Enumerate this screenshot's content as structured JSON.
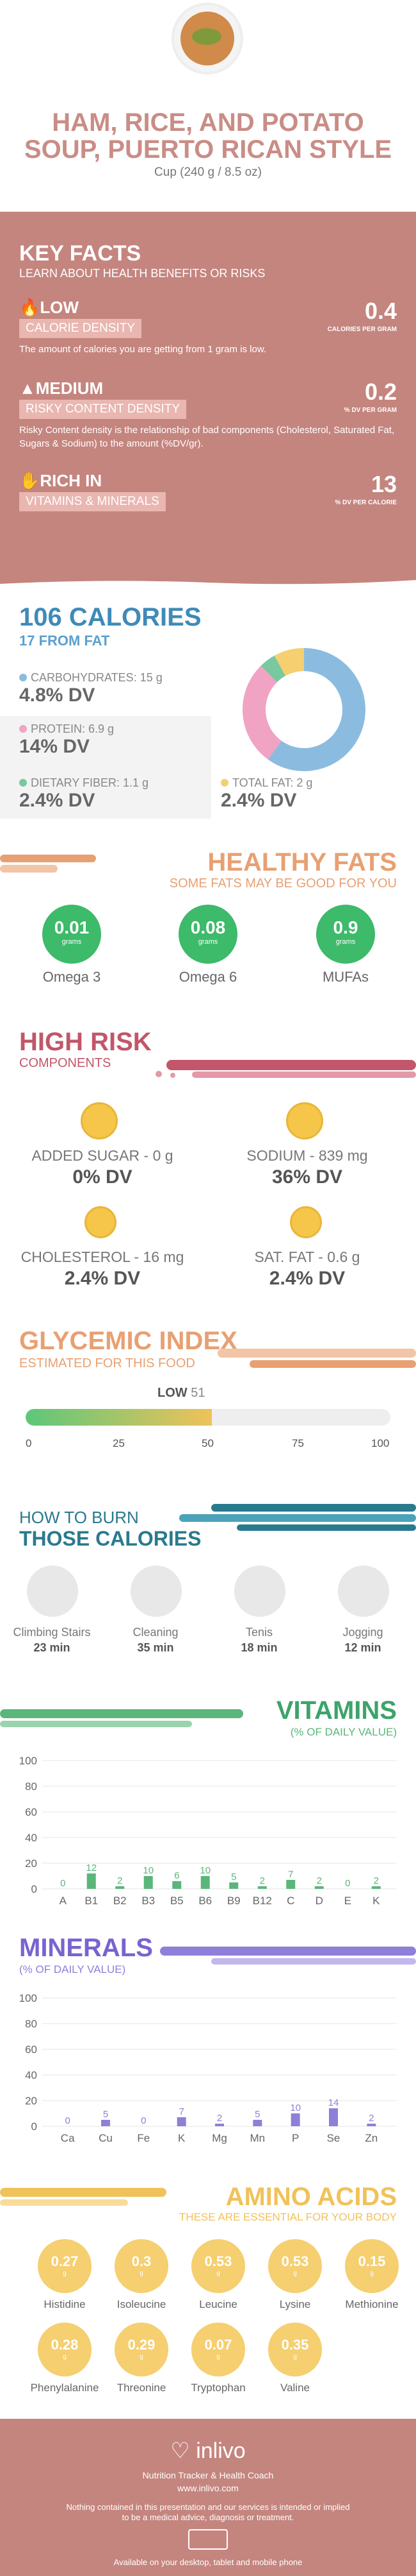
{
  "header": {
    "title": "HAM, RICE, AND POTATO SOUP, PUERTO RICAN STYLE",
    "serving": "Cup (240 g / 8.5 oz)"
  },
  "key_facts": {
    "title": "KEY FACTS",
    "subtitle": "LEARN ABOUT HEALTH BENEFITS OR RISKS",
    "calorie_density": {
      "level": "LOW",
      "label": "CALORIE DENSITY",
      "value": "0.4",
      "unit": "CALORIES PER GRAM",
      "description": "The amount of calories you are getting from 1 gram is low."
    },
    "risky_density": {
      "level": "MEDIUM",
      "label": "RISKY CONTENT DENSITY",
      "value": "0.2",
      "unit": "% DV PER GRAM",
      "description": "Risky Content density is the relationship of bad components (Cholesterol, Saturated Fat, Sugars & Sodium) to the amount (%DV/gr)."
    },
    "rich": {
      "level": "RICH  IN",
      "label": "VITAMINS & MINERALS",
      "value": "13",
      "unit": "% DV PER CALORIE"
    }
  },
  "calories": {
    "title": "106 CALORIES",
    "subtitle": "17 FROM FAT",
    "carbs": {
      "label": "CARBOHYDRATES: 15 g",
      "value": "4.8% DV",
      "color": "#8bbce0"
    },
    "protein": {
      "label": "PROTEIN: 6.9 g",
      "value": "14% DV",
      "color": "#f0a3c3"
    },
    "fiber": {
      "label": "DIETARY FIBER: 1.1 g",
      "value": "2.4% DV",
      "color": "#78c8a0"
    },
    "fat": {
      "label": "TOTAL FAT: 2 g",
      "value": "2.4% DV",
      "color": "#f5cf70"
    }
  },
  "chart_data": [
    {
      "type": "pie",
      "title": "",
      "categories": [
        "Carbohydrates",
        "Protein",
        "Dietary fiber",
        "Total fat"
      ],
      "values": [
        15,
        6.9,
        1.1,
        2
      ],
      "colors": [
        "#8bbce0",
        "#f0a3c3",
        "#78c8a0",
        "#f5cf70"
      ]
    },
    {
      "type": "bar",
      "title": "VITAMINS",
      "categories": [
        "A",
        "B1",
        "B2",
        "B3",
        "B5",
        "B6",
        "B9",
        "B12",
        "C",
        "D",
        "E",
        "K"
      ],
      "values": [
        0,
        12,
        2,
        10,
        6,
        10,
        5,
        2,
        7,
        2,
        0,
        2
      ],
      "ylim": [
        0,
        100
      ],
      "yticks": [
        0,
        20,
        40,
        60,
        80,
        100
      ],
      "color": "#5ab67a"
    },
    {
      "type": "bar",
      "title": "MINERALS",
      "categories": [
        "Ca",
        "Cu",
        "Fe",
        "K",
        "Mg",
        "Mn",
        "P",
        "Se",
        "Zn"
      ],
      "values": [
        0,
        5,
        0,
        7,
        2,
        5,
        10,
        14,
        2
      ],
      "ylim": [
        0,
        100
      ],
      "yticks": [
        0,
        20,
        40,
        60,
        80,
        100
      ],
      "color": "#8f7fd8"
    }
  ],
  "healthy_fats": {
    "title": "HEALTHY FATS",
    "subtitle": "SOME FATS MAY BE GOOD FOR YOU",
    "unit": "grams",
    "items": [
      {
        "value": "0.01",
        "name": "Omega 3"
      },
      {
        "value": "0.08",
        "name": "Omega 6"
      },
      {
        "value": "0.9",
        "name": "MUFAs"
      }
    ]
  },
  "high_risk": {
    "title": "HIGH RISK",
    "subtitle": "COMPONENTS",
    "items": [
      {
        "label": "ADDED SUGAR - 0 g",
        "value": "0% DV"
      },
      {
        "label": "SODIUM - 839 mg",
        "value": "36% DV"
      },
      {
        "label": "CHOLESTEROL - 16 mg",
        "value": "2.4% DV"
      },
      {
        "label": "SAT. FAT - 0.6 g",
        "value": "2.4% DV"
      }
    ]
  },
  "glycemic": {
    "title": "GLYCEMIC INDEX",
    "subtitle": "ESTIMATED FOR THIS FOOD",
    "level": "LOW",
    "value": 51,
    "value_label": "51",
    "ticks": [
      "0",
      "25",
      "50",
      "75",
      "100"
    ]
  },
  "burn": {
    "title_line1": "HOW TO BURN",
    "title_line2": "THOSE CALORIES",
    "activities": [
      {
        "name": "Climbing Stairs",
        "time": "23 min"
      },
      {
        "name": "Cleaning",
        "time": "35 min"
      },
      {
        "name": "Tenis",
        "time": "18 min"
      },
      {
        "name": "Jogging",
        "time": "12 min"
      }
    ]
  },
  "vitamins": {
    "title": "VITAMINS",
    "subtitle": "(% OF DAILY VALUE)"
  },
  "minerals": {
    "title": "MINERALS",
    "subtitle": "(% OF DAILY VALUE)"
  },
  "amino": {
    "title": "AMINO ACIDS",
    "subtitle": "THESE ARE ESSENTIAL FOR YOUR BODY",
    "unit": "g",
    "items": [
      {
        "value": "0.27",
        "name": "Histidine"
      },
      {
        "value": "0.3",
        "name": "Isoleucine"
      },
      {
        "value": "0.53",
        "name": "Leucine"
      },
      {
        "value": "0.53",
        "name": "Lysine"
      },
      {
        "value": "0.15",
        "name": "Methionine"
      },
      {
        "value": "0.28",
        "name": "Phenylalanine"
      },
      {
        "value": "0.29",
        "name": "Threonine"
      },
      {
        "value": "0.07",
        "name": "Tryptophan"
      },
      {
        "value": "0.35",
        "name": "Valine"
      }
    ]
  },
  "footer": {
    "brand": "inlivo",
    "tagline": "Nutrition Tracker & Health Coach",
    "site": "www.inlivo.com",
    "disclaimer1": "Nothing contained in this presentation and our services is intended or implied",
    "disclaimer2": "to be a medical advice, diagnosis or treatment.",
    "platforms": "Available on your desktop, tablet and mobile phone"
  }
}
